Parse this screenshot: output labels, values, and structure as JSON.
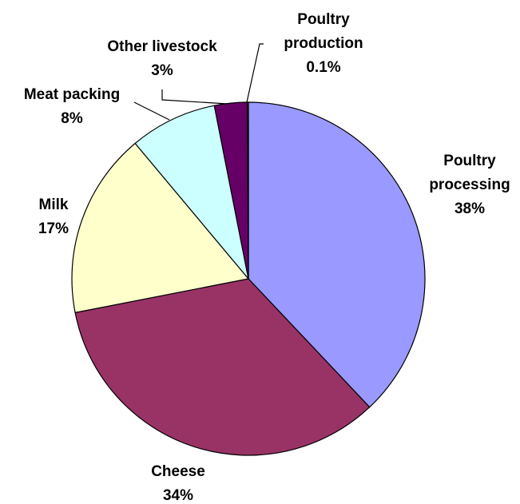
{
  "chart_data": {
    "type": "pie",
    "title": "",
    "slices": [
      {
        "name": "Poultry processing",
        "label_lines": [
          "Poultry",
          "processing"
        ],
        "value": 38,
        "value_label": "38%",
        "color": "#9999FF"
      },
      {
        "name": "Cheese",
        "label_lines": [
          "Cheese"
        ],
        "value": 34,
        "value_label": "34%",
        "color": "#993366"
      },
      {
        "name": "Milk",
        "label_lines": [
          "Milk"
        ],
        "value": 17,
        "value_label": "17%",
        "color": "#FFFFCC"
      },
      {
        "name": "Meat packing",
        "label_lines": [
          "Meat packing"
        ],
        "value": 8,
        "value_label": "8%",
        "color": "#CCFFFF"
      },
      {
        "name": "Other livestock",
        "label_lines": [
          "Other livestock"
        ],
        "value": 3,
        "value_label": "3%",
        "color": "#660066"
      },
      {
        "name": "Poultry production",
        "label_lines": [
          "Poultry",
          "production"
        ],
        "value": 0.1,
        "value_label": "0.1%",
        "color": "#FF8080"
      }
    ],
    "start_angle": "12 o'clock",
    "direction": "clockwise",
    "legend": "none"
  }
}
